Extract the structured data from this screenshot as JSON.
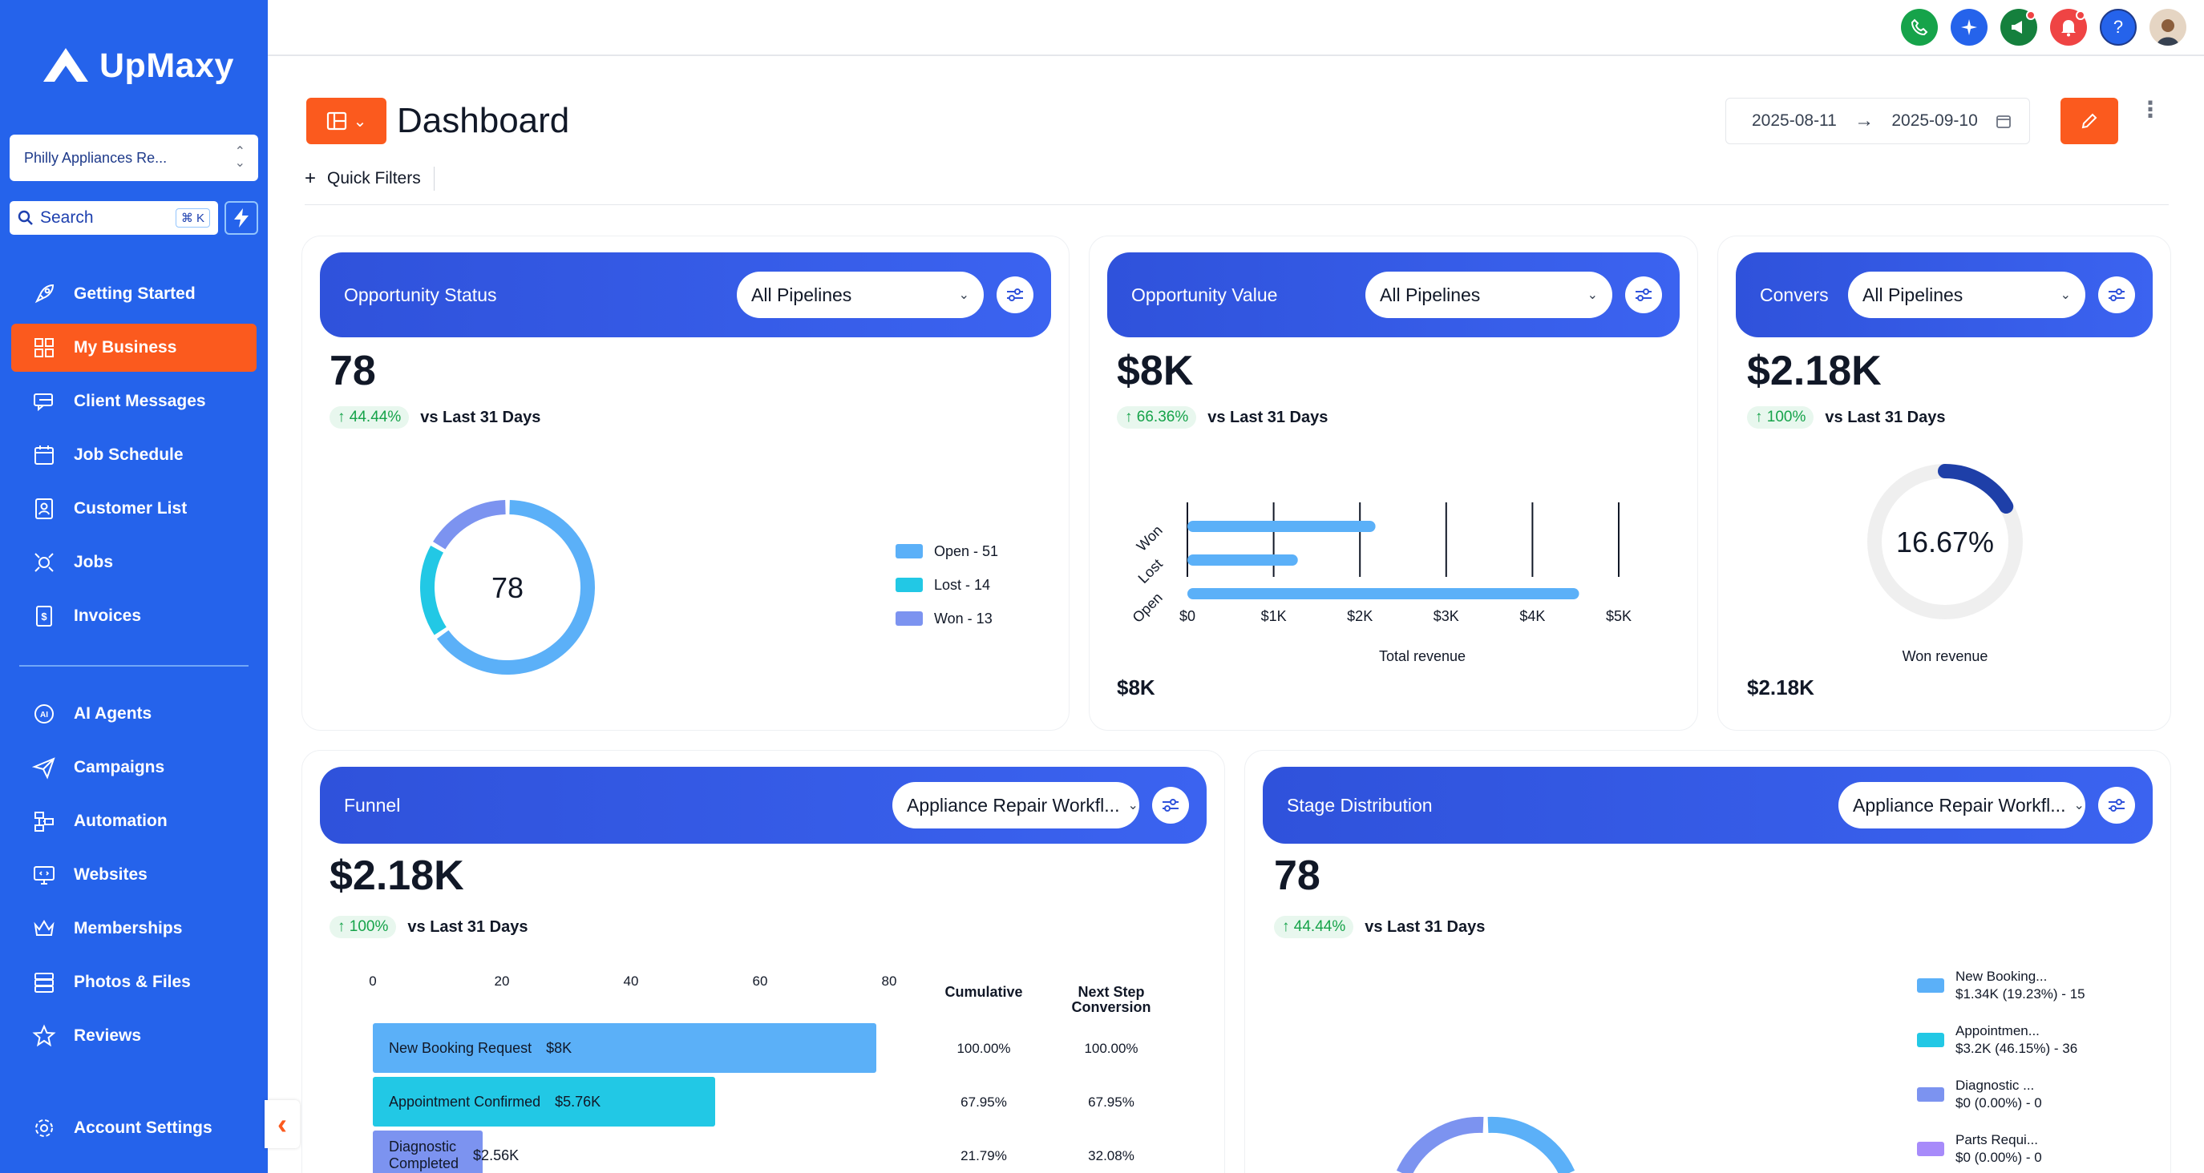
{
  "brand": {
    "name": "UpMaxy"
  },
  "account": {
    "name": "Philly Appliances Re..."
  },
  "search": {
    "placeholder": "Search",
    "shortcut": "⌘ K"
  },
  "nav": {
    "items": [
      {
        "label": "Getting Started",
        "icon": "rocket-icon"
      },
      {
        "label": "My Business",
        "icon": "grid-icon",
        "active": true
      },
      {
        "label": "Client Messages",
        "icon": "messages-icon"
      },
      {
        "label": "Job Schedule",
        "icon": "calendar-icon"
      },
      {
        "label": "Customer List",
        "icon": "contacts-icon"
      },
      {
        "label": "Jobs",
        "icon": "jobs-icon"
      },
      {
        "label": "Invoices",
        "icon": "invoice-icon"
      }
    ],
    "secondary": [
      {
        "label": "AI Agents",
        "icon": "ai-icon"
      },
      {
        "label": "Campaigns",
        "icon": "paper-plane-icon"
      },
      {
        "label": "Automation",
        "icon": "automation-icon"
      },
      {
        "label": "Websites",
        "icon": "monitor-icon"
      },
      {
        "label": "Memberships",
        "icon": "crown-icon"
      },
      {
        "label": "Photos & Files",
        "icon": "files-icon"
      },
      {
        "label": "Reviews",
        "icon": "star-icon"
      }
    ],
    "account_settings": "Account Settings"
  },
  "topbar": {
    "icons": [
      {
        "name": "phone-icon",
        "color": "#16a34a"
      },
      {
        "name": "sparkle-icon",
        "color": "#2563eb"
      },
      {
        "name": "megaphone-icon",
        "color": "#15803d",
        "dot": true
      },
      {
        "name": "bell-icon",
        "color": "#ef4444",
        "dot": true
      },
      {
        "name": "help-icon",
        "color": "#2563eb"
      }
    ]
  },
  "page": {
    "title": "Dashboard",
    "quick_filters": "Quick Filters"
  },
  "date_range": {
    "start": "2025-08-11",
    "end": "2025-09-10"
  },
  "opportunity_status": {
    "title": "Opportunity Status",
    "pipeline": "All Pipelines",
    "value": "78",
    "delta": "44.44%",
    "compare": "vs Last 31 Days",
    "center": "78",
    "legend": [
      {
        "label": "Open - 51",
        "value": 51,
        "color": "#5bb0f8"
      },
      {
        "label": "Lost - 14",
        "value": 14,
        "color": "#22c8e5"
      },
      {
        "label": "Won - 13",
        "value": 13,
        "color": "#7c93f0"
      }
    ]
  },
  "opportunity_value": {
    "title": "Opportunity Value",
    "pipeline": "All Pipelines",
    "value": "$8K",
    "delta": "66.36%",
    "compare": "vs Last 31 Days",
    "footer": "$8K",
    "chart_data": {
      "type": "bar",
      "orientation": "horizontal",
      "categories": [
        "Won",
        "Lost",
        "Open"
      ],
      "values": [
        2180,
        1280,
        4540
      ],
      "xlim": [
        0,
        5000
      ],
      "xticks": [
        "$0",
        "$1K",
        "$2K",
        "$3K",
        "$4K",
        "$5K"
      ],
      "xlabel": "Total revenue",
      "color": "#5bb0f8"
    }
  },
  "conversion": {
    "title": "Convers",
    "pipeline": "All Pipelines",
    "value": "$2.18K",
    "delta": "100%",
    "compare": "vs Last 31 Days",
    "percent_label": "16.67%",
    "percent": 16.67,
    "gauge_label": "Won revenue",
    "footer": "$2.18K"
  },
  "funnel": {
    "title": "Funnel",
    "pipeline": "Appliance Repair Workfl...",
    "value": "$2.18K",
    "delta": "100%",
    "compare": "vs Last 31 Days",
    "col_cumulative": "Cumulative",
    "col_next": "Next Step Conversion",
    "chart_data": {
      "type": "bar",
      "orientation": "horizontal",
      "xticks": [
        0,
        20,
        40,
        60,
        80
      ],
      "xlim": [
        0,
        80
      ],
      "stages": [
        {
          "label": "New Booking Request",
          "amount": "$8K",
          "value": 78,
          "cumulative": "100.00%",
          "next": "100.00%",
          "color": "#5bb0f8"
        },
        {
          "label": "Appointment Confirmed",
          "amount": "$5.76K",
          "value": 53,
          "cumulative": "67.95%",
          "next": "67.95%",
          "color": "#22c8e5"
        },
        {
          "label": "Diagnostic Completed",
          "amount": "$2.56K",
          "value": 17,
          "cumulative": "21.79%",
          "next": "32.08%",
          "color": "#7c93f0"
        }
      ]
    }
  },
  "stage_distribution": {
    "title": "Stage Distribution",
    "pipeline": "Appliance Repair Workfl...",
    "value": "78",
    "delta": "44.44%",
    "compare": "vs Last 31 Days",
    "legend": [
      {
        "name": "New Booking...",
        "detail": "$1.34K (19.23%) - 15",
        "color": "#5bb0f8"
      },
      {
        "name": "Appointmen...",
        "detail": "$3.2K (46.15%) - 36",
        "color": "#22c8e5"
      },
      {
        "name": "Diagnostic ...",
        "detail": "$0 (0.00%) - 0",
        "color": "#7c93f0"
      },
      {
        "name": "Parts Requi...",
        "detail": "$0 (0.00%) - 0",
        "color": "#a78bfa"
      }
    ]
  }
}
